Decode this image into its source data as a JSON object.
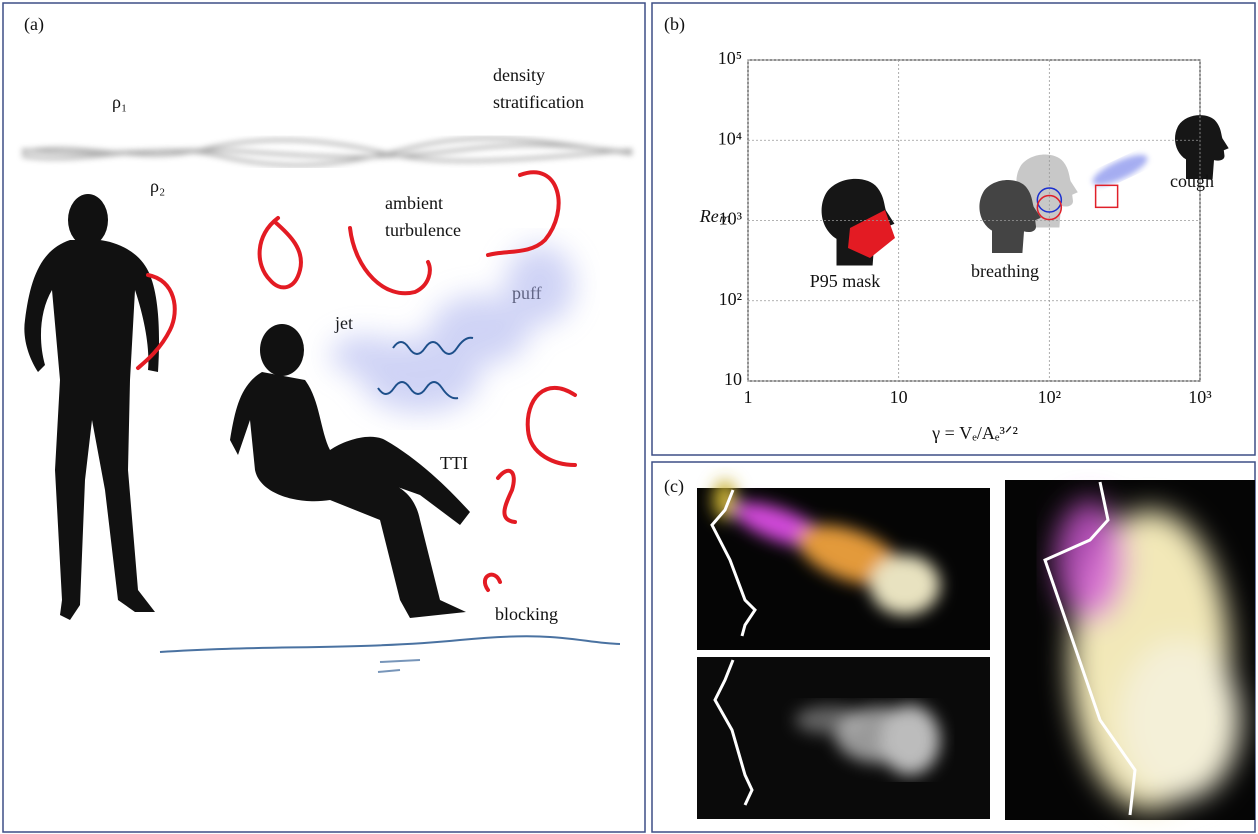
{
  "panel_a": {
    "label": "(a)",
    "rho_1": "ρ₁",
    "rho_2": "ρ₂",
    "density_stratification": [
      "density",
      "stratification"
    ],
    "ambient_turbulence": [
      "ambient",
      "turbulence"
    ],
    "puff": "puff",
    "jet": "jet",
    "tti": "TTI",
    "blocking": "blocking"
  },
  "chart_data": {
    "type": "scatter",
    "label": "(b)",
    "x_label": "γ = Vₑ/Aₑ³ᐟ²",
    "y_label": "Reₘ",
    "log_x": true,
    "log_y": true,
    "grid": true,
    "xlim": [
      1,
      1000
    ],
    "ylim": [
      10,
      100000
    ],
    "xticks": [
      1,
      10,
      {
        "value": 100,
        "label": "10²"
      },
      {
        "value": 1000,
        "label": "10³"
      }
    ],
    "yticks": [
      10,
      {
        "value": 100,
        "label": "10²"
      },
      {
        "value": 1000,
        "label": "10³"
      },
      {
        "value": 10000,
        "label": "10⁴"
      },
      {
        "value": 100000,
        "label": "10⁵"
      }
    ],
    "series": [
      {
        "color": "#1b2fd0",
        "marker": "circle",
        "x": [
          100
        ],
        "values": [
          1800
        ]
      },
      {
        "color": "#e0202a",
        "marker": "circle",
        "x": [
          100
        ],
        "values": [
          1450
        ]
      },
      {
        "color": "#e0202a",
        "marker": "square",
        "x": [
          240
        ],
        "values": [
          2000
        ]
      }
    ],
    "annotations": [
      "P95 mask",
      "breathing",
      "cough"
    ]
  },
  "panel_c": {
    "label": "(c)"
  }
}
